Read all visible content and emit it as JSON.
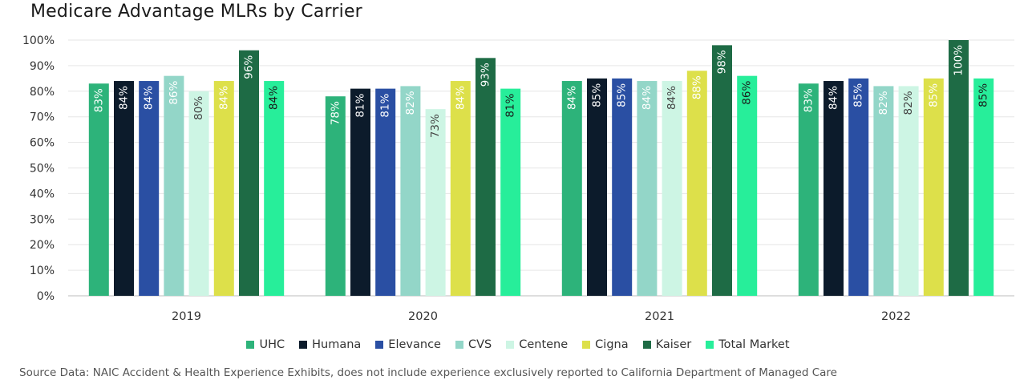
{
  "chart_data": {
    "type": "bar",
    "title": "Medicare Advantage MLRs by Carrier",
    "categories": [
      "2019",
      "2020",
      "2021",
      "2022"
    ],
    "ylim": [
      0,
      100
    ],
    "yticks": [
      "0%",
      "10%",
      "20%",
      "30%",
      "40%",
      "50%",
      "60%",
      "70%",
      "80%",
      "90%",
      "100%"
    ],
    "grid": true,
    "legend_position": "bottom",
    "series": [
      {
        "name": "UHC",
        "color": "#2db37a",
        "label_color": "#ffffff",
        "values": [
          83,
          78,
          84,
          83
        ],
        "labels": [
          "83%",
          "78%",
          "84%",
          "83%"
        ]
      },
      {
        "name": "Humana",
        "color": "#0c1b2b",
        "label_color": "#ffffff",
        "values": [
          84,
          81,
          85,
          84
        ],
        "labels": [
          "84%",
          "81%",
          "85%",
          "84%"
        ]
      },
      {
        "name": "Elevance",
        "color": "#2a4fa3",
        "label_color": "#ffffff",
        "values": [
          84,
          81,
          85,
          85
        ],
        "labels": [
          "84%",
          "81%",
          "85%",
          "85%"
        ]
      },
      {
        "name": "CVS",
        "color": "#93d6c8",
        "label_color": "#ffffff",
        "values": [
          86,
          82,
          84,
          82
        ],
        "labels": [
          "86%",
          "82%",
          "84%",
          "82%"
        ]
      },
      {
        "name": "Centene",
        "color": "#cdf5e4",
        "label_color": "#444444",
        "values": [
          80,
          73,
          84,
          82
        ],
        "labels": [
          "80%",
          "73%",
          "84%",
          "82%"
        ]
      },
      {
        "name": "Cigna",
        "color": "#dde04a",
        "label_color": "#ffffff",
        "values": [
          84,
          84,
          88,
          85
        ],
        "labels": [
          "84%",
          "84%",
          "88%",
          "85%"
        ]
      },
      {
        "name": "Kaiser",
        "color": "#1e6b45",
        "label_color": "#ffffff",
        "values": [
          96,
          93,
          98,
          100
        ],
        "labels": [
          "96%",
          "93%",
          "98%",
          "100%"
        ]
      },
      {
        "name": "Total Market",
        "color": "#27ee9a",
        "label_color": "#1a1a1a",
        "values": [
          84,
          81,
          86,
          85
        ],
        "labels": [
          "84%",
          "81%",
          "86%",
          "85%"
        ]
      }
    ]
  },
  "source": "Source Data: NAIC Accident & Health Experience Exhibits, does not include experience exclusively reported to California Department of Managed Care"
}
